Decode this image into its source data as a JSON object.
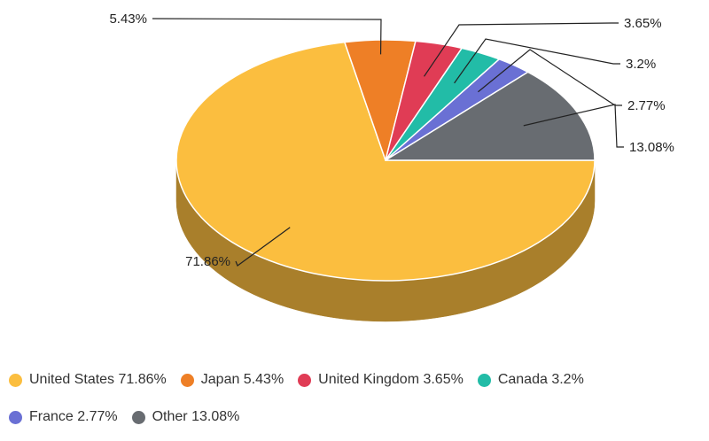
{
  "chart_data": {
    "type": "pie",
    "title": "",
    "three_d": true,
    "slices": [
      {
        "name": "United States",
        "value": 71.86,
        "label": "71.86%",
        "color": "#FBBE3F",
        "side_color": "#A97F2B"
      },
      {
        "name": "Japan",
        "value": 5.43,
        "label": "5.43%",
        "color": "#EE7F26",
        "side_color": "#A4561A"
      },
      {
        "name": "United Kingdom",
        "value": 3.65,
        "label": "3.65%",
        "color": "#E03C55",
        "side_color": "#9A2A3A"
      },
      {
        "name": "Canada",
        "value": 3.2,
        "label": "3.2%",
        "color": "#22BCA7",
        "side_color": "#178273"
      },
      {
        "name": "France",
        "value": 2.77,
        "label": "2.77%",
        "color": "#6A70D4",
        "side_color": "#484C92"
      },
      {
        "name": "Other",
        "value": 13.08,
        "label": "13.08%",
        "color": "#686C71",
        "side_color": "#46494D"
      }
    ],
    "legend": {
      "position": "bottom",
      "rows": [
        [
          {
            "label": "United States 71.86%",
            "color": "#FBBE3F"
          },
          {
            "label": "Japan 5.43%",
            "color": "#EE7F26"
          },
          {
            "label": "United Kingdom 3.65%",
            "color": "#E03C55"
          },
          {
            "label": "Canada 3.2%",
            "color": "#22BCA7"
          }
        ],
        [
          {
            "label": "France 2.77%",
            "color": "#6A70D4"
          },
          {
            "label": "Other 13.08%",
            "color": "#686C71"
          }
        ]
      ]
    }
  }
}
